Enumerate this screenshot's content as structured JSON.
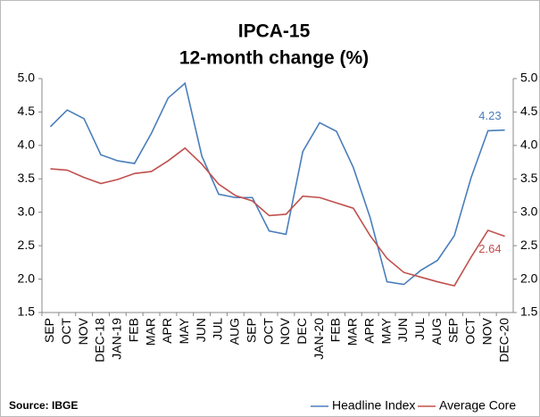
{
  "chart_data": {
    "type": "line",
    "title": "IPCA-15",
    "subtitle": "12-month change (%)",
    "source": "Source: IBGE",
    "categories": [
      "SEP",
      "OCT",
      "NOV",
      "DEC-18",
      "JAN-19",
      "FEB",
      "MAR",
      "APR",
      "MAY",
      "JUN",
      "JUL",
      "AUG",
      "SEP",
      "OCT",
      "NOV",
      "DEC",
      "JAN-20",
      "FEB",
      "MAR",
      "APR",
      "MAY",
      "JUN",
      "JUL",
      "AUG",
      "SEP",
      "OCT",
      "NOV",
      "DEC-20"
    ],
    "series": [
      {
        "name": "Headline Index",
        "color": "#4a7ebb",
        "values": [
          4.28,
          4.53,
          4.4,
          3.86,
          3.77,
          3.73,
          4.18,
          4.71,
          4.93,
          3.84,
          3.27,
          3.22,
          3.22,
          2.72,
          2.67,
          3.91,
          4.34,
          4.21,
          3.67,
          2.92,
          1.96,
          1.92,
          2.13,
          2.28,
          2.65,
          3.52,
          4.22,
          4.23
        ]
      },
      {
        "name": "Average Core",
        "color": "#c0504d",
        "values": [
          3.65,
          3.63,
          3.52,
          3.43,
          3.49,
          3.58,
          3.61,
          3.77,
          3.96,
          3.72,
          3.42,
          3.25,
          3.17,
          2.95,
          2.97,
          3.24,
          3.22,
          3.14,
          3.06,
          2.65,
          2.31,
          2.1,
          2.03,
          1.96,
          1.9,
          2.33,
          2.73,
          2.64
        ]
      }
    ],
    "ylim": [
      1.5,
      5.0
    ],
    "yticks": [
      {
        "value": 1.5,
        "label": "1.5"
      },
      {
        "value": 2.0,
        "label": "2.0"
      },
      {
        "value": 2.5,
        "label": "2.5"
      },
      {
        "value": 3.0,
        "label": "3.0"
      },
      {
        "value": 3.5,
        "label": "3.5"
      },
      {
        "value": 4.0,
        "label": "4.0"
      },
      {
        "value": 4.5,
        "label": "4.5"
      },
      {
        "value": 5.0,
        "label": "5.0"
      }
    ],
    "y2lim": [
      1.5,
      5.0
    ],
    "y2ticks": [
      {
        "value": 1.5,
        "label": "1.5"
      },
      {
        "value": 2.0,
        "label": "2.0"
      },
      {
        "value": 2.5,
        "label": "2.5"
      },
      {
        "value": 3.0,
        "label": "3.0"
      },
      {
        "value": 3.5,
        "label": "3.5"
      },
      {
        "value": 4.0,
        "label": "4.0"
      },
      {
        "value": 4.5,
        "label": "4.5"
      },
      {
        "value": 5.0,
        "label": "5.0"
      }
    ],
    "grid": false,
    "legend": "bottom-right"
  }
}
